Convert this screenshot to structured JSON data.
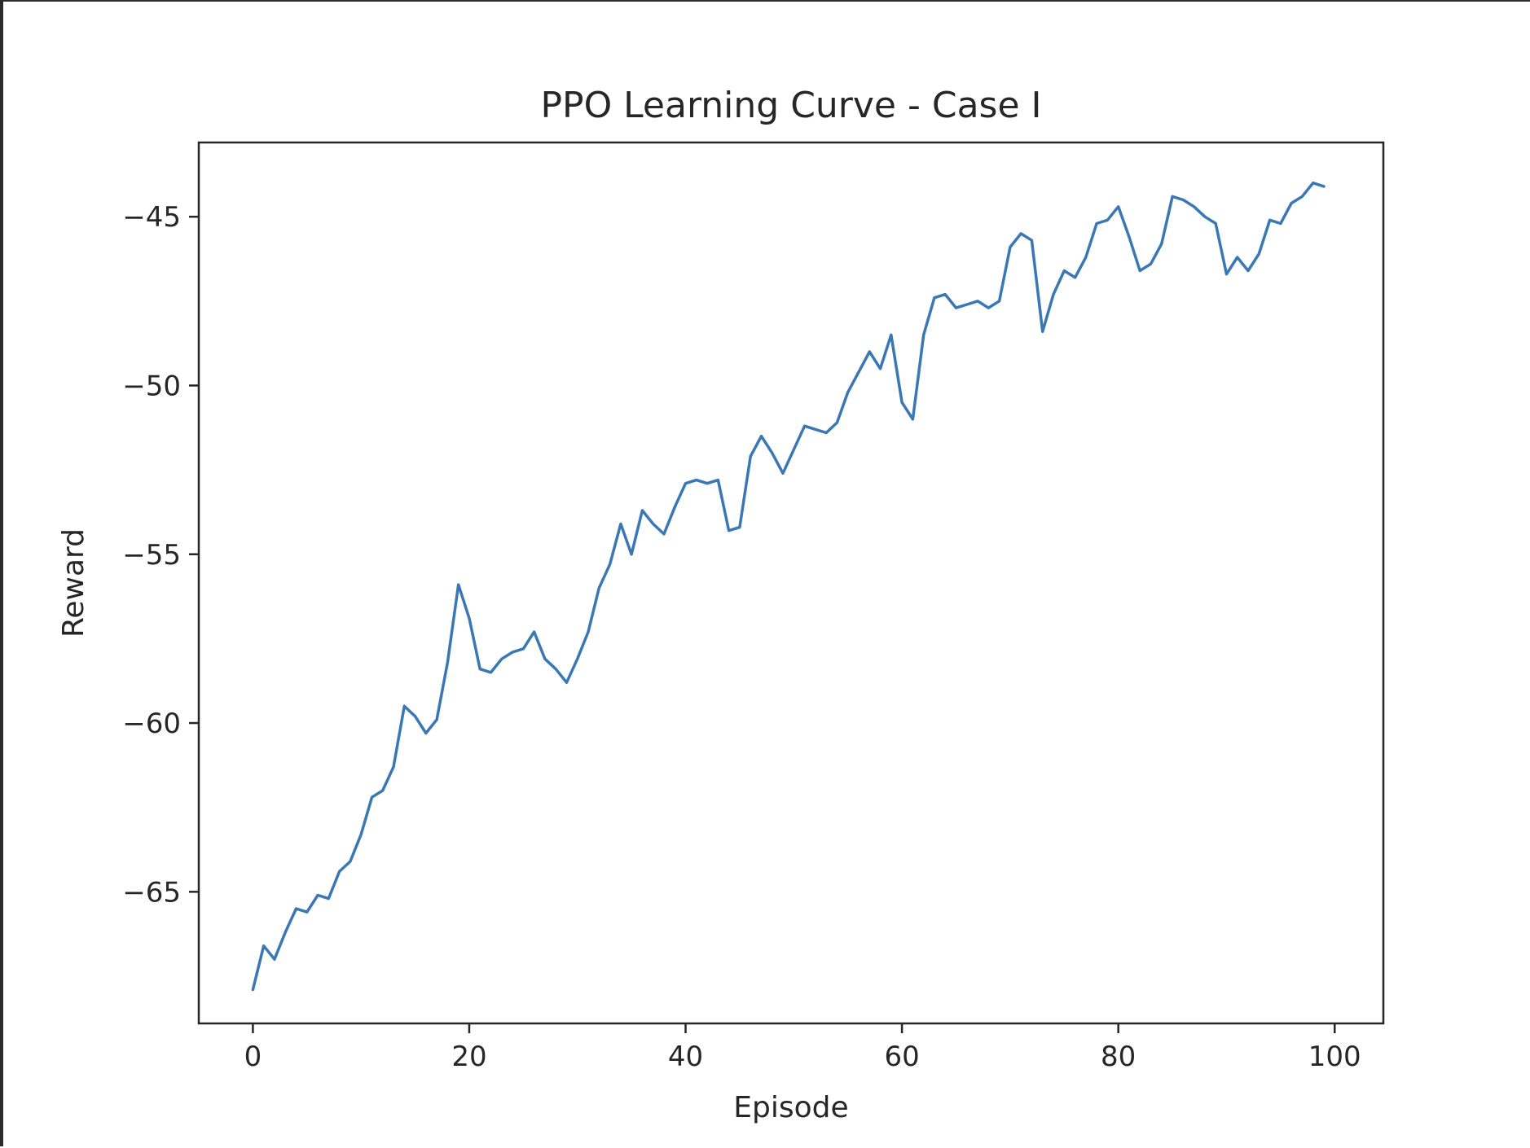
{
  "chart_data": {
    "type": "line",
    "title": "PPO Learning Curve - Case I",
    "xlabel": "Episode",
    "ylabel": "Reward",
    "xlim": [
      -5,
      104.5
    ],
    "ylim": [
      -68.9,
      -42.8
    ],
    "xticks": [
      0,
      20,
      40,
      60,
      80,
      100
    ],
    "xtick_labels": [
      "0",
      "20",
      "40",
      "60",
      "80",
      "100"
    ],
    "yticks": [
      -65,
      -60,
      -55,
      -50,
      -45
    ],
    "ytick_labels": [
      "−65",
      "−60",
      "−55",
      "−50",
      "−45"
    ],
    "grid": false,
    "legend": "none",
    "series": [
      {
        "color": "#3a78b5",
        "x": [
          0,
          1,
          2,
          3,
          4,
          5,
          6,
          7,
          8,
          9,
          10,
          11,
          12,
          13,
          14,
          15,
          16,
          17,
          18,
          19,
          20,
          21,
          22,
          23,
          24,
          25,
          26,
          27,
          28,
          29,
          30,
          31,
          32,
          33,
          34,
          35,
          36,
          37,
          38,
          39,
          40,
          41,
          42,
          43,
          44,
          45,
          46,
          47,
          48,
          49,
          50,
          51,
          52,
          53,
          54,
          55,
          56,
          57,
          58,
          59,
          60,
          61,
          62,
          63,
          64,
          65,
          66,
          67,
          68,
          69,
          70,
          71,
          72,
          73,
          74,
          75,
          76,
          77,
          78,
          79,
          80,
          81,
          82,
          83,
          84,
          85,
          86,
          87,
          88,
          89,
          90,
          91,
          92,
          93,
          94,
          95,
          96,
          97,
          98,
          99
        ],
        "values": [
          -67.9,
          -66.6,
          -67.0,
          -66.2,
          -65.5,
          -65.6,
          -65.1,
          -65.2,
          -64.4,
          -64.1,
          -63.3,
          -62.2,
          -62.0,
          -61.3,
          -59.5,
          -59.8,
          -60.3,
          -59.9,
          -58.2,
          -55.9,
          -56.9,
          -58.4,
          -58.5,
          -58.1,
          -57.9,
          -57.8,
          -57.3,
          -58.1,
          -58.4,
          -58.8,
          -58.1,
          -57.3,
          -56.0,
          -55.3,
          -54.1,
          -55.0,
          -53.7,
          -54.1,
          -54.4,
          -53.6,
          -52.9,
          -52.8,
          -52.9,
          -52.8,
          -54.3,
          -54.2,
          -52.1,
          -51.5,
          -52.0,
          -52.6,
          -51.9,
          -51.2,
          -51.3,
          -51.4,
          -51.1,
          -50.2,
          -49.6,
          -49.0,
          -49.5,
          -48.5,
          -50.5,
          -51.0,
          -48.5,
          -47.4,
          -47.3,
          -47.7,
          -47.6,
          -47.5,
          -47.7,
          -47.5,
          -45.9,
          -45.5,
          -45.7,
          -48.4,
          -47.3,
          -46.6,
          -46.8,
          -46.2,
          -45.2,
          -45.1,
          -44.7,
          -45.6,
          -46.6,
          -46.4,
          -45.8,
          -44.4,
          -44.5,
          -44.7,
          -45.0,
          -45.2,
          -46.7,
          -46.2,
          -46.6,
          -46.1,
          -45.1,
          -45.2,
          -44.6,
          -44.4,
          -44.0,
          -44.1
        ]
      }
    ]
  }
}
